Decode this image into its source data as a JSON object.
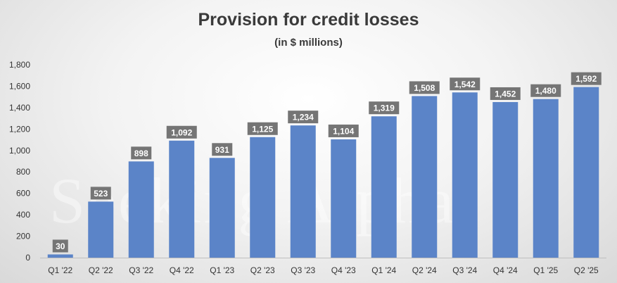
{
  "chart_data": {
    "type": "bar",
    "title": "Provision for credit losses",
    "subtitle": "(in $ millions)",
    "categories": [
      "Q1 '22",
      "Q2 '22",
      "Q3 '22",
      "Q4 '22",
      "Q1 '23",
      "Q2 '23",
      "Q3 '23",
      "Q4 '23",
      "Q1 '24",
      "Q2 '24",
      "Q3 '24",
      "Q4 '24",
      "Q1 '25",
      "Q2 '25"
    ],
    "values": [
      30,
      523,
      898,
      1092,
      931,
      1125,
      1234,
      1104,
      1319,
      1508,
      1542,
      1452,
      1480,
      1592
    ],
    "data_labels": [
      "30",
      "523",
      "898",
      "1,092",
      "931",
      "1,125",
      "1,234",
      "1,104",
      "1,319",
      "1,508",
      "1,542",
      "1,452",
      "1,480",
      "1,592"
    ],
    "y_ticks": [
      0,
      200,
      400,
      600,
      800,
      1000,
      1200,
      1400,
      1600,
      1800
    ],
    "y_tick_labels": [
      "0",
      "200",
      "400",
      "600",
      "800",
      "1,000",
      "1,200",
      "1,400",
      "1,600",
      "1,800"
    ],
    "ylim": [
      0,
      1800
    ],
    "xlabel": "",
    "ylabel": "",
    "grid": false,
    "legend": "none",
    "colors": {
      "bar": "#5b84c8",
      "data_label_box": "#757575",
      "axis": "#bfbfbf"
    }
  },
  "watermark": "Seeking Alpha"
}
